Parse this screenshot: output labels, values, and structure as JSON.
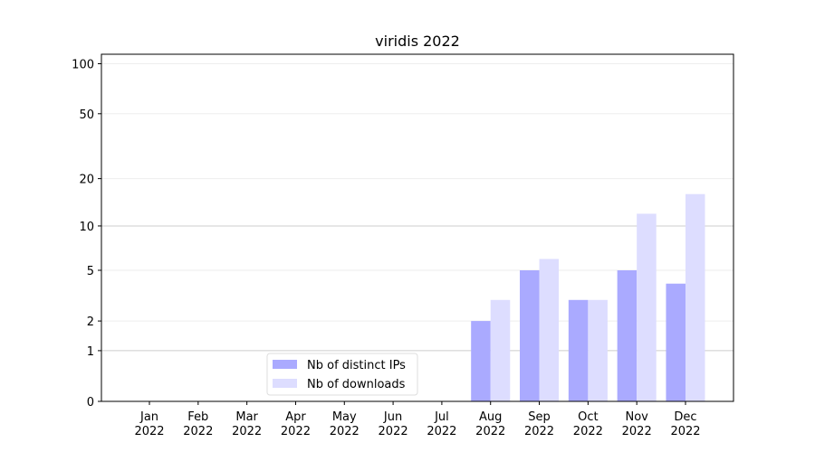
{
  "chart_data": {
    "type": "bar",
    "title": "viridis 2022",
    "categories": [
      "Jan\n2022",
      "Feb\n2022",
      "Mar\n2022",
      "Apr\n2022",
      "May\n2022",
      "Jun\n2022",
      "Jul\n2022",
      "Aug\n2022",
      "Sep\n2022",
      "Oct\n2022",
      "Nov\n2022",
      "Dec\n2022"
    ],
    "series": [
      {
        "name": "Nb of distinct IPs",
        "color": "#aaaaff",
        "values": [
          0,
          0,
          0,
          0,
          0,
          0,
          0,
          2,
          5,
          3,
          5,
          4
        ]
      },
      {
        "name": "Nb of downloads",
        "color": "#ddddff",
        "values": [
          0,
          0,
          0,
          0,
          0,
          0,
          0,
          3,
          6,
          3,
          12,
          16
        ]
      }
    ],
    "yscale": "log1p",
    "ylim": [
      0,
      114
    ],
    "yticks": [
      0,
      1,
      2,
      5,
      10,
      20,
      50,
      100
    ],
    "grid": true,
    "legend": "lower center"
  }
}
